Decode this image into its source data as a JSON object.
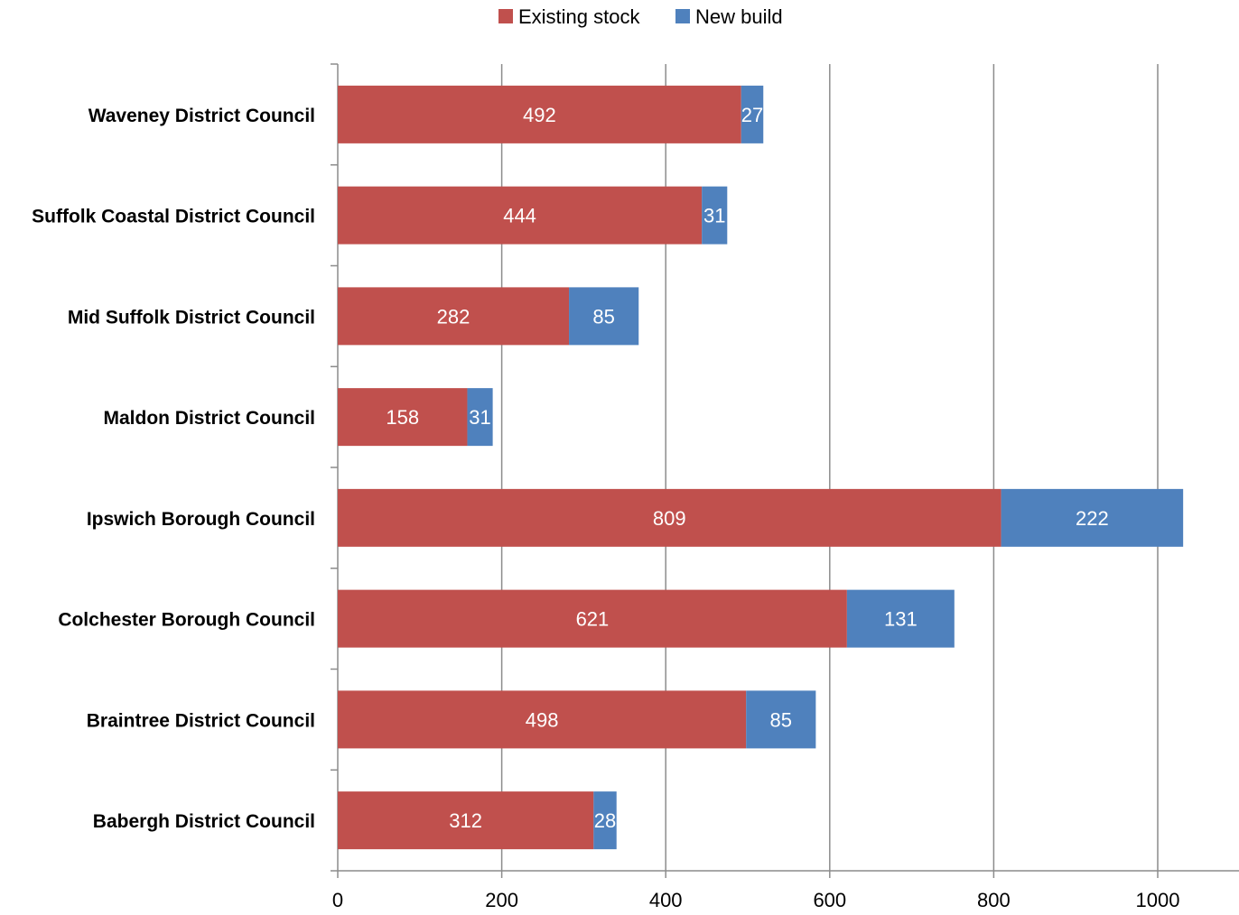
{
  "chart_data": {
    "type": "bar",
    "orientation": "horizontal",
    "stacked": true,
    "categories": [
      "Waveney District Council",
      "Suffolk Coastal District Council",
      "Mid Suffolk District Council",
      "Maldon District Council",
      "Ipswich Borough Council",
      "Colchester Borough Council",
      "Braintree District Council",
      "Babergh District Council"
    ],
    "series": [
      {
        "name": "Existing stock",
        "color": "#c0504d",
        "values": [
          492,
          444,
          282,
          158,
          809,
          621,
          498,
          312
        ]
      },
      {
        "name": "New build",
        "color": "#4f81bd",
        "values": [
          27,
          31,
          85,
          31,
          222,
          131,
          85,
          28
        ]
      }
    ],
    "xlim": [
      0,
      1100
    ],
    "xticks": [
      0,
      200,
      400,
      600,
      800,
      1000
    ],
    "grid": "vertical",
    "legend_position": "top-center",
    "data_labels": true
  }
}
